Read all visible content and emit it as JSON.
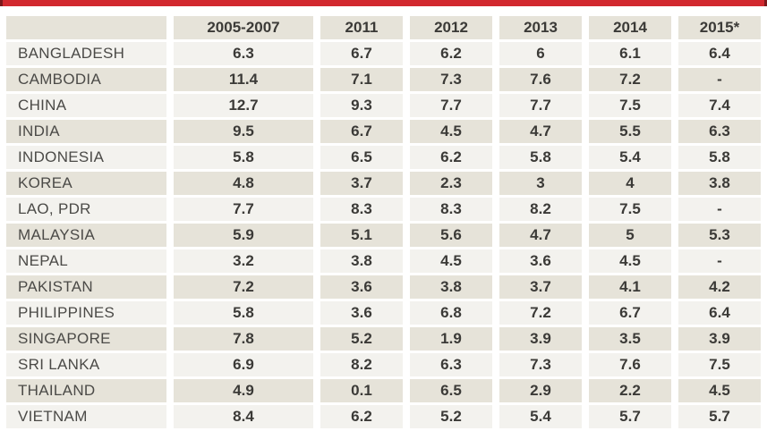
{
  "accent_bar": {
    "color": "#d2292f",
    "edge_color": "#7c181b"
  },
  "table": {
    "header": [
      "",
      "2005-2007",
      "2011",
      "2012",
      "2013",
      "2014",
      "2015*"
    ],
    "rows": [
      {
        "label": "BANGLADESH",
        "values": [
          "6.3",
          "6.7",
          "6.2",
          "6",
          "6.1",
          "6.4"
        ]
      },
      {
        "label": "CAMBODIA",
        "values": [
          "11.4",
          "7.1",
          "7.3",
          "7.6",
          "7.2",
          "-"
        ]
      },
      {
        "label": "CHINA",
        "values": [
          "12.7",
          "9.3",
          "7.7",
          "7.7",
          "7.5",
          "7.4"
        ]
      },
      {
        "label": "INDIA",
        "values": [
          "9.5",
          "6.7",
          "4.5",
          "4.7",
          "5.5",
          "6.3"
        ]
      },
      {
        "label": "INDONESIA",
        "values": [
          "5.8",
          "6.5",
          "6.2",
          "5.8",
          "5.4",
          "5.8"
        ]
      },
      {
        "label": "KOREA",
        "values": [
          "4.8",
          "3.7",
          "2.3",
          "3",
          "4",
          "3.8"
        ]
      },
      {
        "label": "LAO, PDR",
        "values": [
          "7.7",
          "8.3",
          "8.3",
          "8.2",
          "7.5",
          "-"
        ]
      },
      {
        "label": "MALAYSIA",
        "values": [
          "5.9",
          "5.1",
          "5.6",
          "4.7",
          "5",
          "5.3"
        ]
      },
      {
        "label": "NEPAL",
        "values": [
          "3.2",
          "3.8",
          "4.5",
          "3.6",
          "4.5",
          "-"
        ]
      },
      {
        "label": "PAKISTAN",
        "values": [
          "7.2",
          "3.6",
          "3.8",
          "3.7",
          "4.1",
          "4.2"
        ]
      },
      {
        "label": "PHILIPPINES",
        "values": [
          "5.8",
          "3.6",
          "6.8",
          "7.2",
          "6.7",
          "6.4"
        ]
      },
      {
        "label": "SINGAPORE",
        "values": [
          "7.8",
          "5.2",
          "1.9",
          "3.9",
          "3.5",
          "3.9"
        ]
      },
      {
        "label": "SRI LANKA",
        "values": [
          "6.9",
          "8.2",
          "6.3",
          "7.3",
          "7.6",
          "7.5"
        ]
      },
      {
        "label": "THAILAND",
        "values": [
          "4.9",
          "0.1",
          "6.5",
          "2.9",
          "2.2",
          "4.5"
        ]
      },
      {
        "label": "VIETNAM",
        "values": [
          "8.4",
          "6.2",
          "5.2",
          "5.4",
          "5.7",
          "5.7"
        ]
      }
    ],
    "colors": {
      "header_bg": "#e6e3d9",
      "row_light": "#f3f2ee",
      "row_beige": "#e6e3d9",
      "label_text": "#4b4a47",
      "value_text": "#3b3a37"
    }
  },
  "chart_data": {
    "type": "table",
    "title": "",
    "columns": [
      "2005-2007",
      "2011",
      "2012",
      "2013",
      "2014",
      "2015*"
    ],
    "series": [
      {
        "name": "BANGLADESH",
        "values": [
          6.3,
          6.7,
          6.2,
          6,
          6.1,
          6.4
        ]
      },
      {
        "name": "CAMBODIA",
        "values": [
          11.4,
          7.1,
          7.3,
          7.6,
          7.2,
          null
        ]
      },
      {
        "name": "CHINA",
        "values": [
          12.7,
          9.3,
          7.7,
          7.7,
          7.5,
          7.4
        ]
      },
      {
        "name": "INDIA",
        "values": [
          9.5,
          6.7,
          4.5,
          4.7,
          5.5,
          6.3
        ]
      },
      {
        "name": "INDONESIA",
        "values": [
          5.8,
          6.5,
          6.2,
          5.8,
          5.4,
          5.8
        ]
      },
      {
        "name": "KOREA",
        "values": [
          4.8,
          3.7,
          2.3,
          3,
          4,
          3.8
        ]
      },
      {
        "name": "LAO, PDR",
        "values": [
          7.7,
          8.3,
          8.3,
          8.2,
          7.5,
          null
        ]
      },
      {
        "name": "MALAYSIA",
        "values": [
          5.9,
          5.1,
          5.6,
          4.7,
          5,
          5.3
        ]
      },
      {
        "name": "NEPAL",
        "values": [
          3.2,
          3.8,
          4.5,
          3.6,
          4.5,
          null
        ]
      },
      {
        "name": "PAKISTAN",
        "values": [
          7.2,
          3.6,
          3.8,
          3.7,
          4.1,
          4.2
        ]
      },
      {
        "name": "PHILIPPINES",
        "values": [
          5.8,
          3.6,
          6.8,
          7.2,
          6.7,
          6.4
        ]
      },
      {
        "name": "SINGAPORE",
        "values": [
          7.8,
          5.2,
          1.9,
          3.9,
          3.5,
          3.9
        ]
      },
      {
        "name": "SRI LANKA",
        "values": [
          6.9,
          8.2,
          6.3,
          7.3,
          7.6,
          7.5
        ]
      },
      {
        "name": "THAILAND",
        "values": [
          4.9,
          0.1,
          6.5,
          2.9,
          2.2,
          4.5
        ]
      },
      {
        "name": "VIETNAM",
        "values": [
          8.4,
          6.2,
          5.2,
          5.4,
          5.7,
          5.7
        ]
      }
    ],
    "missing_value_marker": "-"
  }
}
